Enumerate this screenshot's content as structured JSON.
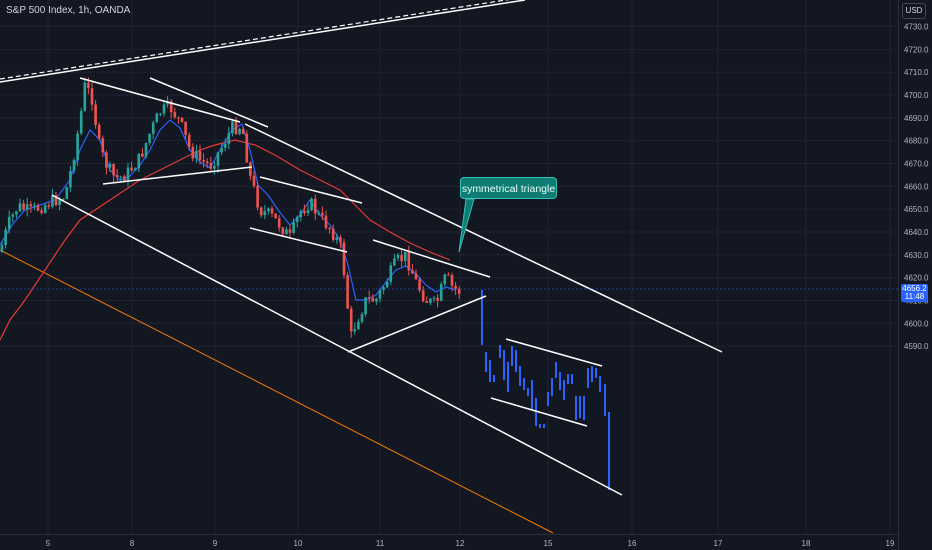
{
  "header": {
    "title": "S&P 500 Index, 1h, OANDA",
    "currency": "USD"
  },
  "price_tag": {
    "price": "4656.2",
    "countdown": "11:48"
  },
  "annotation": {
    "text": "symmetrical triangle"
  },
  "colors": {
    "background": "#131722",
    "up_candle": "#26a69a",
    "down_candle": "#ef5350",
    "projection": "#2962ff",
    "ma_fast": "#2962ff",
    "ma_slow": "#e53935",
    "trendline": "#ffffff",
    "support_line": "#f57c00",
    "grid": "#1f2330",
    "annotation_bg": "#0e7c72"
  },
  "chart_data": {
    "type": "candlestick",
    "symbol": "S&P 500 Index",
    "timeframe": "1h",
    "source": "OANDA",
    "ylim": [
      4588,
      4734
    ],
    "y_ticks": [
      "4730.0",
      "4720.0",
      "4710.0",
      "4700.0",
      "4690.0",
      "4680.0",
      "4670.0",
      "4660.0",
      "4650.0",
      "4640.0",
      "4630.0",
      "4620.0",
      "4610.0",
      "4600.0",
      "4590.0"
    ],
    "x_ticks": [
      "5",
      "8",
      "9",
      "10",
      "11",
      "12",
      "15",
      "16",
      "17",
      "18",
      "19"
    ],
    "last_price": 4656.2,
    "grid": true
  }
}
